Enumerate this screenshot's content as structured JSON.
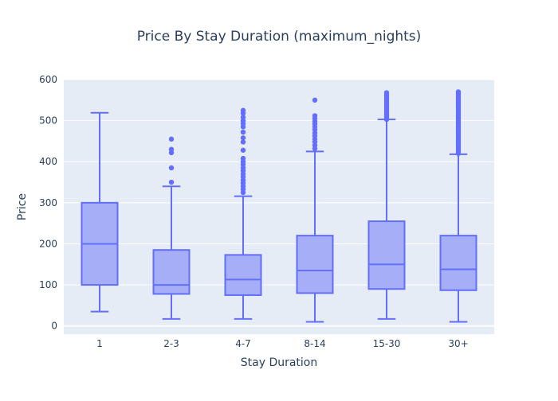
{
  "chart_data": {
    "type": "box",
    "title": "Price By Stay Duration (maximum_nights)",
    "xlabel": "Stay Duration",
    "ylabel": "Price",
    "ylim": [
      -20,
      600
    ],
    "yticks": [
      0,
      100,
      200,
      300,
      400,
      500,
      600
    ],
    "categories": [
      "1",
      "2-3",
      "4-7",
      "8-14",
      "15-30",
      "30+"
    ],
    "boxes": [
      {
        "category": "1",
        "min": 35,
        "q1": 100,
        "median": 200,
        "q3": 300,
        "max": 519,
        "outliers": []
      },
      {
        "category": "2-3",
        "min": 17,
        "q1": 78,
        "median": 100,
        "q3": 185,
        "max": 340,
        "outliers": [
          350,
          385,
          422,
          430,
          455
        ]
      },
      {
        "category": "4-7",
        "min": 17,
        "q1": 75,
        "median": 113,
        "q3": 173,
        "max": 316,
        "outliers": [
          325,
          333,
          340,
          348,
          355,
          363,
          370,
          378,
          385,
          393,
          400,
          408,
          428,
          448,
          458,
          472,
          485,
          493,
          500,
          508,
          518,
          525
        ]
      },
      {
        "category": "8-14",
        "min": 10,
        "q1": 80,
        "median": 135,
        "q3": 220,
        "max": 425,
        "outliers": [
          432,
          440,
          448,
          455,
          463,
          470,
          478,
          485,
          492,
          498,
          505,
          512,
          550
        ]
      },
      {
        "category": "15-30",
        "min": 17,
        "q1": 90,
        "median": 150,
        "q3": 255,
        "max": 503,
        "outliers": [
          503,
          508,
          513,
          518,
          523,
          528,
          533,
          538,
          543,
          548,
          553,
          558,
          563,
          568
        ]
      },
      {
        "category": "30+",
        "min": 10,
        "q1": 87,
        "median": 138,
        "q3": 220,
        "max": 418,
        "outliers": [
          420,
          425,
          430,
          435,
          440,
          445,
          450,
          455,
          460,
          465,
          470,
          475,
          480,
          485,
          490,
          495,
          500,
          505,
          510,
          515,
          520,
          525,
          530,
          535,
          540,
          545,
          550,
          555,
          560,
          565,
          570
        ]
      }
    ],
    "grid": true,
    "colors": {
      "plot_bg": "#E5ECF6",
      "grid": "#FFFFFF",
      "box_fill": "#A5AEF7",
      "box_line": "#636EFA",
      "text": "#2A3F5F"
    }
  }
}
